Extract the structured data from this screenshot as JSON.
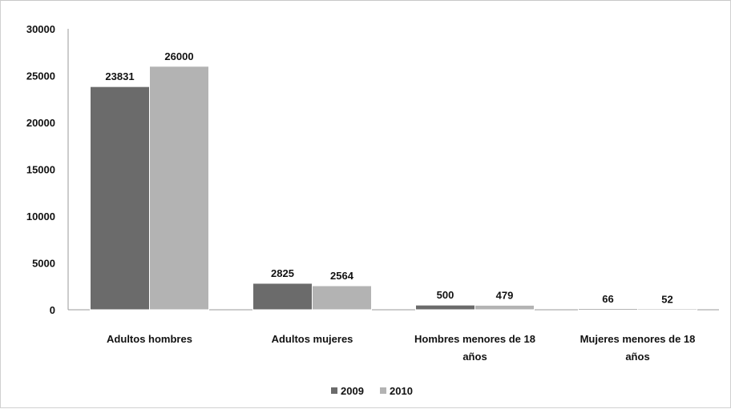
{
  "chart_data": {
    "type": "bar",
    "categories": [
      [
        "Adultos hombres"
      ],
      [
        "Adultos mujeres"
      ],
      [
        "Hombres menores de 18",
        "años"
      ],
      [
        "Mujeres menores de 18",
        "años"
      ]
    ],
    "series": [
      {
        "name": "2009",
        "values": [
          23831,
          2825,
          500,
          66
        ],
        "color": "#6b6b6b"
      },
      {
        "name": "2010",
        "values": [
          26000,
          2564,
          479,
          52
        ],
        "color": "#b3b3b3"
      }
    ],
    "ylim": [
      0,
      30000
    ],
    "yticks": [
      "0",
      "5000",
      "10000",
      "15000",
      "20000",
      "25000",
      "30000"
    ],
    "data_labels": true,
    "grid": false,
    "legend": "bottom"
  }
}
